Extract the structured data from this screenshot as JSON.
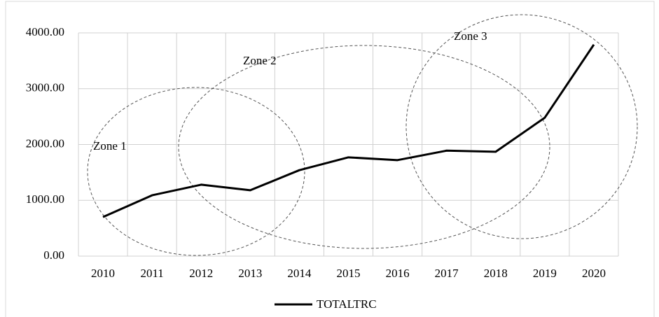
{
  "chart_data": {
    "type": "line",
    "categories": [
      "2010",
      "2011",
      "2012",
      "2013",
      "2014",
      "2015",
      "2016",
      "2017",
      "2018",
      "2019",
      "2020"
    ],
    "series": [
      {
        "name": "TOTALTRC",
        "color": "#000000",
        "values": [
          700,
          1090,
          1280,
          1180,
          1540,
          1770,
          1720,
          1890,
          1870,
          2480,
          3790
        ]
      }
    ],
    "ylim": [
      0,
      4000
    ],
    "yticks": [
      {
        "value": 0,
        "label": "0.00"
      },
      {
        "value": 1000,
        "label": "1000.00"
      },
      {
        "value": 2000,
        "label": "2000.00"
      },
      {
        "value": 3000,
        "label": "3000.00"
      },
      {
        "value": 4000,
        "label": "4000.00"
      }
    ],
    "annotations": [
      "Zone 1",
      "Zone 2",
      "Zone 3"
    ],
    "grid": true,
    "legend": "bottom"
  }
}
